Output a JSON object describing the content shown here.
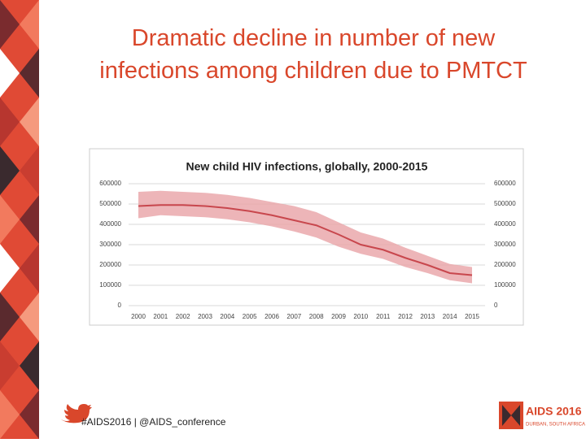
{
  "slide_title": "Dramatic decline in number of new infections among children due to PMTCT",
  "chart_data": {
    "type": "band-line",
    "title": "New child HIV infections, globally, 2000-2015",
    "x": [
      2000,
      2001,
      2002,
      2003,
      2004,
      2005,
      2006,
      2007,
      2008,
      2009,
      2010,
      2011,
      2012,
      2013,
      2014,
      2015
    ],
    "values": [
      490000,
      495000,
      495000,
      490000,
      480000,
      465000,
      445000,
      420000,
      395000,
      350000,
      300000,
      275000,
      235000,
      200000,
      160000,
      150000
    ],
    "upper": [
      560000,
      565000,
      560000,
      555000,
      545000,
      530000,
      510000,
      490000,
      460000,
      410000,
      360000,
      330000,
      285000,
      245000,
      205000,
      190000
    ],
    "lower": [
      430000,
      445000,
      440000,
      435000,
      425000,
      410000,
      390000,
      365000,
      335000,
      290000,
      255000,
      230000,
      190000,
      160000,
      125000,
      110000
    ],
    "color": "#c8474d",
    "band_color": "#e8a3a6",
    "xlim": [
      2000,
      2015
    ],
    "xticks": [
      2000,
      2001,
      2002,
      2003,
      2004,
      2005,
      2006,
      2007,
      2008,
      2009,
      2010,
      2011,
      2012,
      2013,
      2014,
      2015
    ],
    "ylim": [
      0,
      600000
    ],
    "yticks": [
      0,
      100000,
      200000,
      300000,
      400000,
      500000,
      600000
    ],
    "y2ticks": [
      0,
      100000,
      200000,
      300000,
      400000,
      500000,
      600000
    ],
    "grid": true
  },
  "footer": {
    "hashtag": "#AIDS2016 | @AIDS_conference",
    "logo": "AIDS 2016",
    "logo_sub": "DURBAN, SOUTH AFRICA"
  }
}
